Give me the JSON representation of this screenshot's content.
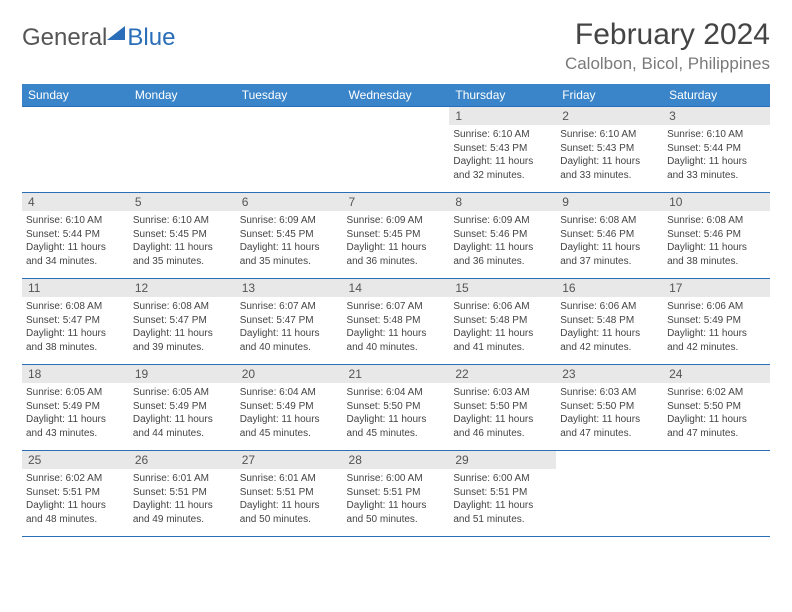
{
  "brand": {
    "word1": "General",
    "word2": "Blue"
  },
  "title": "February 2024",
  "location": "Calolbon, Bicol, Philippines",
  "colors": {
    "header_bg": "#3a85c9",
    "border": "#2a6db8",
    "daynum_bg": "#e8e8e8",
    "text": "#444444"
  },
  "weekday_labels": [
    "Sunday",
    "Monday",
    "Tuesday",
    "Wednesday",
    "Thursday",
    "Friday",
    "Saturday"
  ],
  "weeks": [
    [
      {
        "n": "",
        "sr": "",
        "ss": "",
        "dl": ""
      },
      {
        "n": "",
        "sr": "",
        "ss": "",
        "dl": ""
      },
      {
        "n": "",
        "sr": "",
        "ss": "",
        "dl": ""
      },
      {
        "n": "",
        "sr": "",
        "ss": "",
        "dl": ""
      },
      {
        "n": "1",
        "sr": "Sunrise: 6:10 AM",
        "ss": "Sunset: 5:43 PM",
        "dl": "Daylight: 11 hours and 32 minutes."
      },
      {
        "n": "2",
        "sr": "Sunrise: 6:10 AM",
        "ss": "Sunset: 5:43 PM",
        "dl": "Daylight: 11 hours and 33 minutes."
      },
      {
        "n": "3",
        "sr": "Sunrise: 6:10 AM",
        "ss": "Sunset: 5:44 PM",
        "dl": "Daylight: 11 hours and 33 minutes."
      }
    ],
    [
      {
        "n": "4",
        "sr": "Sunrise: 6:10 AM",
        "ss": "Sunset: 5:44 PM",
        "dl": "Daylight: 11 hours and 34 minutes."
      },
      {
        "n": "5",
        "sr": "Sunrise: 6:10 AM",
        "ss": "Sunset: 5:45 PM",
        "dl": "Daylight: 11 hours and 35 minutes."
      },
      {
        "n": "6",
        "sr": "Sunrise: 6:09 AM",
        "ss": "Sunset: 5:45 PM",
        "dl": "Daylight: 11 hours and 35 minutes."
      },
      {
        "n": "7",
        "sr": "Sunrise: 6:09 AM",
        "ss": "Sunset: 5:45 PM",
        "dl": "Daylight: 11 hours and 36 minutes."
      },
      {
        "n": "8",
        "sr": "Sunrise: 6:09 AM",
        "ss": "Sunset: 5:46 PM",
        "dl": "Daylight: 11 hours and 36 minutes."
      },
      {
        "n": "9",
        "sr": "Sunrise: 6:08 AM",
        "ss": "Sunset: 5:46 PM",
        "dl": "Daylight: 11 hours and 37 minutes."
      },
      {
        "n": "10",
        "sr": "Sunrise: 6:08 AM",
        "ss": "Sunset: 5:46 PM",
        "dl": "Daylight: 11 hours and 38 minutes."
      }
    ],
    [
      {
        "n": "11",
        "sr": "Sunrise: 6:08 AM",
        "ss": "Sunset: 5:47 PM",
        "dl": "Daylight: 11 hours and 38 minutes."
      },
      {
        "n": "12",
        "sr": "Sunrise: 6:08 AM",
        "ss": "Sunset: 5:47 PM",
        "dl": "Daylight: 11 hours and 39 minutes."
      },
      {
        "n": "13",
        "sr": "Sunrise: 6:07 AM",
        "ss": "Sunset: 5:47 PM",
        "dl": "Daylight: 11 hours and 40 minutes."
      },
      {
        "n": "14",
        "sr": "Sunrise: 6:07 AM",
        "ss": "Sunset: 5:48 PM",
        "dl": "Daylight: 11 hours and 40 minutes."
      },
      {
        "n": "15",
        "sr": "Sunrise: 6:06 AM",
        "ss": "Sunset: 5:48 PM",
        "dl": "Daylight: 11 hours and 41 minutes."
      },
      {
        "n": "16",
        "sr": "Sunrise: 6:06 AM",
        "ss": "Sunset: 5:48 PM",
        "dl": "Daylight: 11 hours and 42 minutes."
      },
      {
        "n": "17",
        "sr": "Sunrise: 6:06 AM",
        "ss": "Sunset: 5:49 PM",
        "dl": "Daylight: 11 hours and 42 minutes."
      }
    ],
    [
      {
        "n": "18",
        "sr": "Sunrise: 6:05 AM",
        "ss": "Sunset: 5:49 PM",
        "dl": "Daylight: 11 hours and 43 minutes."
      },
      {
        "n": "19",
        "sr": "Sunrise: 6:05 AM",
        "ss": "Sunset: 5:49 PM",
        "dl": "Daylight: 11 hours and 44 minutes."
      },
      {
        "n": "20",
        "sr": "Sunrise: 6:04 AM",
        "ss": "Sunset: 5:49 PM",
        "dl": "Daylight: 11 hours and 45 minutes."
      },
      {
        "n": "21",
        "sr": "Sunrise: 6:04 AM",
        "ss": "Sunset: 5:50 PM",
        "dl": "Daylight: 11 hours and 45 minutes."
      },
      {
        "n": "22",
        "sr": "Sunrise: 6:03 AM",
        "ss": "Sunset: 5:50 PM",
        "dl": "Daylight: 11 hours and 46 minutes."
      },
      {
        "n": "23",
        "sr": "Sunrise: 6:03 AM",
        "ss": "Sunset: 5:50 PM",
        "dl": "Daylight: 11 hours and 47 minutes."
      },
      {
        "n": "24",
        "sr": "Sunrise: 6:02 AM",
        "ss": "Sunset: 5:50 PM",
        "dl": "Daylight: 11 hours and 47 minutes."
      }
    ],
    [
      {
        "n": "25",
        "sr": "Sunrise: 6:02 AM",
        "ss": "Sunset: 5:51 PM",
        "dl": "Daylight: 11 hours and 48 minutes."
      },
      {
        "n": "26",
        "sr": "Sunrise: 6:01 AM",
        "ss": "Sunset: 5:51 PM",
        "dl": "Daylight: 11 hours and 49 minutes."
      },
      {
        "n": "27",
        "sr": "Sunrise: 6:01 AM",
        "ss": "Sunset: 5:51 PM",
        "dl": "Daylight: 11 hours and 50 minutes."
      },
      {
        "n": "28",
        "sr": "Sunrise: 6:00 AM",
        "ss": "Sunset: 5:51 PM",
        "dl": "Daylight: 11 hours and 50 minutes."
      },
      {
        "n": "29",
        "sr": "Sunrise: 6:00 AM",
        "ss": "Sunset: 5:51 PM",
        "dl": "Daylight: 11 hours and 51 minutes."
      },
      {
        "n": "",
        "sr": "",
        "ss": "",
        "dl": ""
      },
      {
        "n": "",
        "sr": "",
        "ss": "",
        "dl": ""
      }
    ]
  ]
}
